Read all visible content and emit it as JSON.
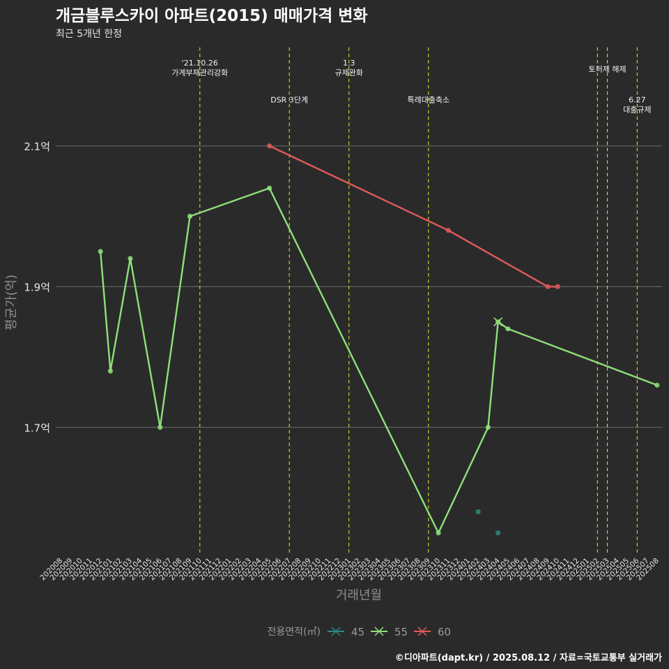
{
  "chart_data": {
    "type": "line",
    "title": "개금블루스카이 아파트(2015) 매매가격 변화",
    "subtitle": "최근 5개년 한정",
    "xlabel": "거래년월",
    "ylabel": "평균가(억)",
    "legend_title": "전용면적(㎡)",
    "legend_position": "bottom",
    "caption": "©디아파트(dapt.kr) / 2025.08.12 / 자료=국토교통부 실거래가",
    "ylim": [
      1.52,
      2.24
    ],
    "y_ticks": [
      1.7,
      1.9,
      2.1
    ],
    "y_tick_labels": [
      "1.7억",
      "1.9억",
      "2.1억"
    ],
    "grid": "horizontal-major",
    "x_ticks": [
      "202008",
      "202009",
      "202010",
      "202011",
      "202012",
      "202101",
      "202102",
      "202103",
      "202104",
      "202105",
      "202106",
      "202107",
      "202108",
      "202109",
      "202110",
      "202111",
      "202112",
      "202201",
      "202202",
      "202203",
      "202204",
      "202205",
      "202206",
      "202207",
      "202208",
      "202209",
      "202210",
      "202211",
      "202212",
      "202301",
      "202302",
      "202303",
      "202304",
      "202305",
      "202306",
      "202307",
      "202308",
      "202309",
      "202310",
      "202311",
      "202312",
      "202401",
      "202402",
      "202403",
      "202404",
      "202405",
      "202406",
      "202407",
      "202408",
      "202409",
      "202410",
      "202411",
      "202412",
      "202501",
      "202502",
      "202503",
      "202504",
      "202505",
      "202506",
      "202507",
      "202508"
    ],
    "series": [
      {
        "name": "45",
        "color": "#2a8a80",
        "points": [
          {
            "x": "202402",
            "y": 1.58
          },
          {
            "x": "202404",
            "y": 1.55
          }
        ]
      },
      {
        "name": "55",
        "color": "#8ee07a",
        "points": [
          {
            "x": "202012",
            "y": 1.95
          },
          {
            "x": "202101",
            "y": 1.78
          },
          {
            "x": "202103",
            "y": 1.94
          },
          {
            "x": "202106",
            "y": 1.7
          },
          {
            "x": "202109",
            "y": 2.0
          },
          {
            "x": "202205",
            "y": 2.04
          },
          {
            "x": "202310",
            "y": 1.55
          },
          {
            "x": "202403",
            "y": 1.7
          },
          {
            "x": "202404",
            "y": 1.85
          },
          {
            "x": "202405",
            "y": 1.84
          },
          {
            "x": "202508",
            "y": 1.76
          }
        ]
      },
      {
        "name": "60",
        "color": "#e05a5a",
        "points": [
          {
            "x": "202205",
            "y": 2.1
          },
          {
            "x": "202311",
            "y": 1.98
          },
          {
            "x": "202409",
            "y": 1.9
          },
          {
            "x": "202410",
            "y": 1.9
          }
        ]
      }
    ],
    "events": [
      {
        "x": "202110",
        "label_lines": [
          "'21.10.26",
          "가계부채관리강화"
        ],
        "row": "top"
      },
      {
        "x": "202207",
        "label_lines": [
          "DSR 3단계"
        ],
        "row": "low"
      },
      {
        "x": "202301",
        "label_lines": [
          "1.3",
          "규제완화"
        ],
        "row": "top"
      },
      {
        "x": "202309",
        "label_lines": [
          "특례대출축소"
        ],
        "row": "low"
      },
      {
        "x": "202502",
        "label_lines": [],
        "row": "top"
      },
      {
        "x": "202503",
        "label_lines": [
          "토허제 해제"
        ],
        "row": "mid"
      },
      {
        "x": "202506",
        "label_lines": [
          "6.27",
          "대출규제"
        ],
        "row": "low"
      }
    ]
  }
}
